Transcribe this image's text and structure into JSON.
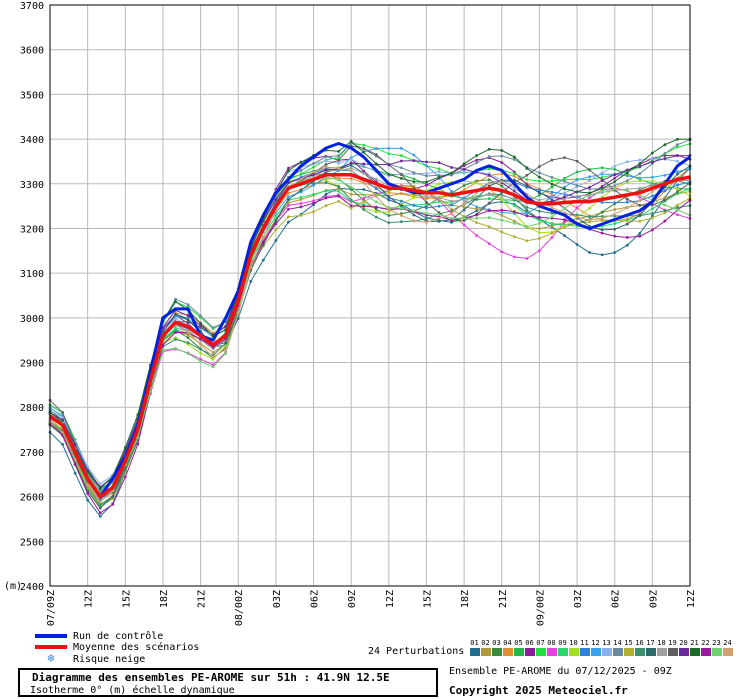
{
  "chart_data": {
    "type": "line",
    "title": "Diagramme des ensembles PE-AROME sur 51h : 41.9N 12.5E",
    "subtitle": "Isotherme 0° (m) échelle dynamique",
    "ylabel": "(m)",
    "ylim": [
      2400,
      3700
    ],
    "yticks": [
      2400,
      2500,
      2600,
      2700,
      2800,
      2900,
      3000,
      3100,
      3200,
      3300,
      3400,
      3500,
      3600,
      3700
    ],
    "x_tick_labels": [
      "07/09Z",
      "12Z",
      "15Z",
      "18Z",
      "21Z",
      "08/00Z",
      "03Z",
      "06Z",
      "09Z",
      "12Z",
      "15Z",
      "18Z",
      "21Z",
      "09/00Z",
      "03Z",
      "06Z",
      "09Z",
      "12Z"
    ],
    "grid": true,
    "x_hours": [
      0,
      1,
      2,
      3,
      4,
      5,
      6,
      7,
      8,
      9,
      10,
      11,
      12,
      13,
      14,
      15,
      16,
      17,
      18,
      19,
      20,
      21,
      22,
      23,
      24,
      25,
      26,
      27,
      28,
      29,
      30,
      31,
      32,
      33,
      34,
      35,
      36,
      37,
      38,
      39,
      40,
      41,
      42,
      43,
      44,
      45,
      46,
      47,
      48,
      49,
      50,
      51
    ],
    "series": [
      {
        "name": "Run de contrôle",
        "color": "#0022dd",
        "values": [
          2780,
          2760,
          2700,
          2640,
          2600,
          2640,
          2690,
          2760,
          2880,
          3000,
          3020,
          3020,
          2960,
          2950,
          3000,
          3060,
          3170,
          3230,
          3280,
          3310,
          3340,
          3360,
          3380,
          3390,
          3380,
          3360,
          3330,
          3300,
          3290,
          3280,
          3280,
          3290,
          3300,
          3310,
          3330,
          3340,
          3330,
          3300,
          3270,
          3250,
          3240,
          3230,
          3210,
          3200,
          3210,
          3220,
          3230,
          3240,
          3260,
          3300,
          3340,
          3360
        ]
      },
      {
        "name": "Moyenne des scénarios",
        "color": "#ee1111",
        "values": [
          2780,
          2760,
          2700,
          2640,
          2600,
          2620,
          2680,
          2750,
          2860,
          2960,
          2990,
          2980,
          2960,
          2940,
          2960,
          3040,
          3140,
          3200,
          3250,
          3290,
          3300,
          3310,
          3320,
          3320,
          3320,
          3310,
          3300,
          3290,
          3290,
          3285,
          3280,
          3280,
          3275,
          3280,
          3285,
          3290,
          3285,
          3275,
          3260,
          3255,
          3255,
          3258,
          3260,
          3260,
          3265,
          3270,
          3275,
          3280,
          3290,
          3300,
          3310,
          3315
        ]
      }
    ]
  },
  "legend": {
    "control": "Run de contrôle",
    "mean": "Moyenne des scénarios",
    "snow": "Risque neige",
    "snow_icon": "snowflake-icon"
  },
  "perturbations": {
    "label": "24 Perturbations",
    "ids": [
      "01",
      "02",
      "03",
      "04",
      "05",
      "06",
      "07",
      "08",
      "09",
      "10",
      "11",
      "12",
      "13",
      "14",
      "15",
      "16",
      "17",
      "18",
      "19",
      "20",
      "21",
      "22",
      "23",
      "24"
    ],
    "colors": [
      "#1e6e8c",
      "#b09a3c",
      "#3a8a3a",
      "#e09030",
      "#22b84a",
      "#8c1e9c",
      "#20e040",
      "#e840e0",
      "#2ad86a",
      "#a0e020",
      "#3080e0",
      "#3aa0f0",
      "#8ab0f0",
      "#6a8aa0",
      "#b0b030",
      "#3a9070",
      "#2a6a6a",
      "#a0a0a0",
      "#606060",
      "#6a2a9a",
      "#1a6a2a",
      "#9a1aa0",
      "#70d070",
      "#d0a070"
    ]
  },
  "footer": {
    "title": "Diagramme des ensembles PE-AROME sur 51h : 41.9N 12.5E",
    "subtitle": "Isotherme 0° (m) échelle dynamique",
    "ensemble": "Ensemble PE-AROME du 07/12/2025 - 09Z",
    "copyright": "Copyright 2025 Meteociel.fr"
  },
  "colors": {
    "grid": "#bbbbbb",
    "axis": "#000000",
    "background": "#ffffff"
  }
}
